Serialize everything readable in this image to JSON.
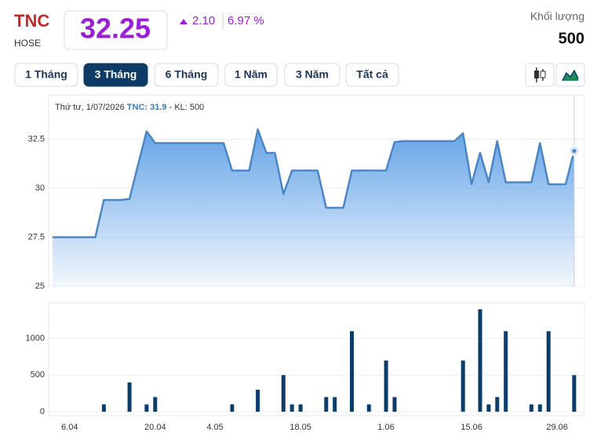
{
  "header": {
    "symbol": "TNC",
    "exchange": "HOSE",
    "price": "32.25",
    "change": "2.10",
    "change_percent": "6.97 %",
    "volume_label": "Khối lượng",
    "volume": "500"
  },
  "buttons": [
    "1 Tháng",
    "3 Tháng",
    "6 Tháng",
    "1 Năm",
    "3 Năm",
    "Tất cả"
  ],
  "active_button": 1,
  "tooltip": {
    "date": "Thứ tư, 1/07/2026",
    "symbol": "TNC:",
    "price": "31.9",
    "volume": "- KL: 500"
  },
  "chart_data": [
    {
      "type": "area",
      "color": "#4a86c5",
      "values": [
        27.5,
        27.5,
        27.5,
        27.5,
        27.5,
        27.5,
        29.4,
        29.4,
        29.4,
        29.45,
        31.2,
        32.9,
        32.3,
        32.3,
        32.3,
        32.3,
        32.3,
        32.3,
        32.3,
        32.3,
        32.3,
        30.9,
        30.9,
        30.9,
        33.0,
        31.8,
        31.8,
        29.7,
        30.9,
        30.9,
        30.9,
        30.9,
        29.0,
        29.0,
        29.0,
        30.9,
        30.9,
        30.9,
        30.9,
        30.9,
        32.35,
        32.4,
        32.4,
        32.4,
        32.4,
        32.4,
        32.4,
        32.4,
        32.8,
        30.2,
        31.8,
        30.3,
        32.4,
        30.3,
        30.3,
        30.3,
        30.3,
        32.3,
        30.2,
        30.2,
        30.2,
        31.9
      ],
      "ylim": [
        25,
        35
      ],
      "yticks": [
        25,
        27.5,
        30,
        32.5
      ],
      "grid": true
    },
    {
      "type": "bar",
      "color": "#0b3d6b",
      "categories": [
        null,
        null,
        "6.04",
        null,
        null,
        null,
        null,
        null,
        null,
        null,
        null,
        null,
        "20.04",
        null,
        null,
        null,
        null,
        null,
        null,
        "4.05",
        null,
        null,
        null,
        null,
        null,
        null,
        null,
        null,
        null,
        "18.05",
        null,
        null,
        null,
        null,
        null,
        null,
        null,
        null,
        null,
        "1.06",
        null,
        null,
        null,
        null,
        null,
        null,
        null,
        null,
        null,
        "15.06",
        null,
        null,
        null,
        null,
        null,
        null,
        null,
        null,
        null,
        "29.06",
        null,
        null
      ],
      "values": [
        0,
        0,
        0,
        0,
        0,
        0,
        100,
        0,
        0,
        400,
        0,
        100,
        200,
        0,
        0,
        0,
        0,
        0,
        0,
        0,
        0,
        100,
        0,
        0,
        300,
        0,
        0,
        500,
        100,
        100,
        0,
        0,
        200,
        200,
        0,
        1100,
        0,
        100,
        0,
        700,
        200,
        0,
        0,
        0,
        0,
        0,
        0,
        0,
        700,
        0,
        1400,
        100,
        200,
        1100,
        0,
        0,
        100,
        100,
        1100,
        0,
        0,
        500
      ],
      "ylim": [
        0,
        1500
      ],
      "yticks": [
        0,
        500,
        1000
      ],
      "grid": true
    }
  ]
}
